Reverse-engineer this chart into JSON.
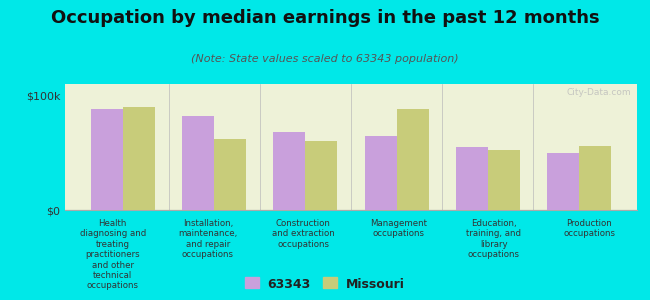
{
  "title": "Occupation by median earnings in the past 12 months",
  "subtitle": "(Note: State values scaled to 63343 population)",
  "background_color": "#00e8e8",
  "plot_bg_color": "#eef2d8",
  "categories": [
    "Health\ndiagnosing and\ntreating\npractitioners\nand other\ntechnical\noccupations",
    "Installation,\nmaintenance,\nand repair\noccupations",
    "Construction\nand extraction\noccupations",
    "Management\noccupations",
    "Education,\ntraining, and\nlibrary\noccupations",
    "Production\noccupations"
  ],
  "values_63343": [
    88000,
    82000,
    68000,
    65000,
    55000,
    50000
  ],
  "values_missouri": [
    90000,
    62000,
    60000,
    88000,
    52000,
    56000
  ],
  "color_63343": "#c9a0dc",
  "color_missouri": "#c8cc7a",
  "ylim": [
    0,
    110000
  ],
  "yticks": [
    0,
    100000
  ],
  "ytick_labels": [
    "$0",
    "$100k"
  ],
  "legend_label_63343": "63343",
  "legend_label_missouri": "Missouri",
  "watermark": "City-Data.com",
  "title_fontsize": 13,
  "subtitle_fontsize": 8
}
